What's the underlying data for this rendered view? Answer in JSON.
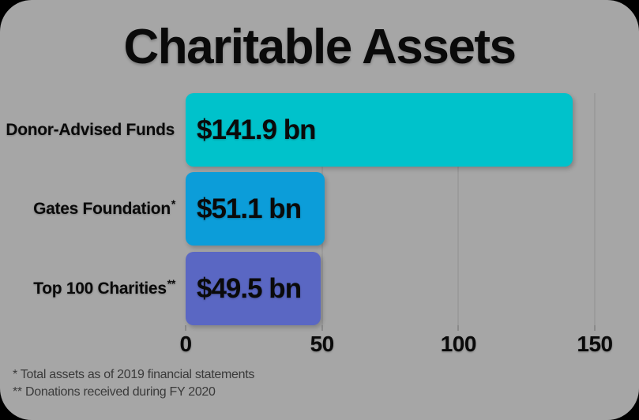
{
  "title": "Charitable Assets",
  "chart_data": {
    "type": "bar",
    "orientation": "horizontal",
    "title": "Charitable Assets",
    "categories": [
      "Donor-Advised Funds",
      "Gates Foundation*",
      "Top 100 Charities**"
    ],
    "values": [
      141.9,
      51.1,
      49.5
    ],
    "value_labels": [
      "$141.9 bn",
      "$51.1 bn",
      "$49.5 bn"
    ],
    "bar_colors": [
      "#00c2cb",
      "#0c9dd9",
      "#5a67c3"
    ],
    "xlim": [
      0,
      150
    ],
    "xticks": [
      0,
      50,
      100,
      150
    ],
    "grid": true,
    "legend": "none",
    "footnotes": [
      "*  Total assets as of 2019 financial statements",
      "** Donations received during FY 2020"
    ]
  },
  "category_labels": [
    {
      "text": "Donor-Advised Funds",
      "marker": ""
    },
    {
      "text": "Gates Foundation",
      "marker": "*"
    },
    {
      "text": "Top 100 Charities",
      "marker": "**"
    }
  ],
  "colors": {
    "page_background": "#000000",
    "card_background": "#a6a6a6",
    "gridline": "#9b9b9b",
    "text": "#0a0a0a",
    "footnote_text": "#3a3a3a"
  }
}
